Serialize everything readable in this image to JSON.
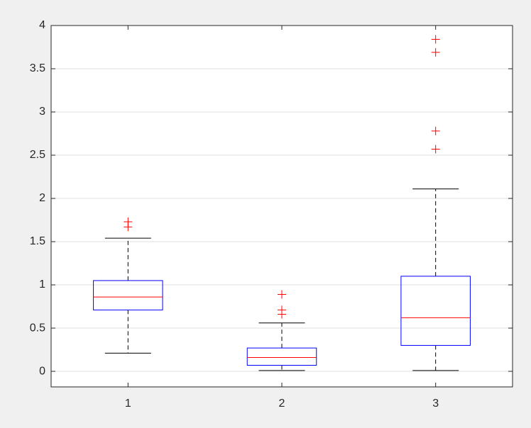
{
  "chart_data": {
    "type": "box",
    "categories": [
      "1",
      "2",
      "3"
    ],
    "boxes": [
      {
        "whisker_low": 0.21,
        "q1": 0.71,
        "median": 0.86,
        "q3": 1.05,
        "whisker_high": 1.54,
        "outliers": [
          1.67,
          1.73
        ]
      },
      {
        "whisker_low": 0.01,
        "q1": 0.07,
        "median": 0.16,
        "q3": 0.27,
        "whisker_high": 0.56,
        "outliers": [
          0.66,
          0.71,
          0.89
        ]
      },
      {
        "whisker_low": 0.01,
        "q1": 0.3,
        "median": 0.62,
        "q3": 1.1,
        "whisker_high": 2.11,
        "outliers": [
          2.57,
          2.78,
          3.69,
          3.84
        ]
      }
    ],
    "box_color": "#0000ff",
    "median_color": "#ff0000",
    "whisker_color": "#000000",
    "outlier_color": "#ff0000",
    "xlim": [
      0.5,
      3.5
    ],
    "ylim": [
      -0.18,
      4
    ],
    "yticks": [
      0,
      0.5,
      1,
      1.5,
      2,
      2.5,
      3,
      3.5,
      4
    ],
    "grid": true
  }
}
